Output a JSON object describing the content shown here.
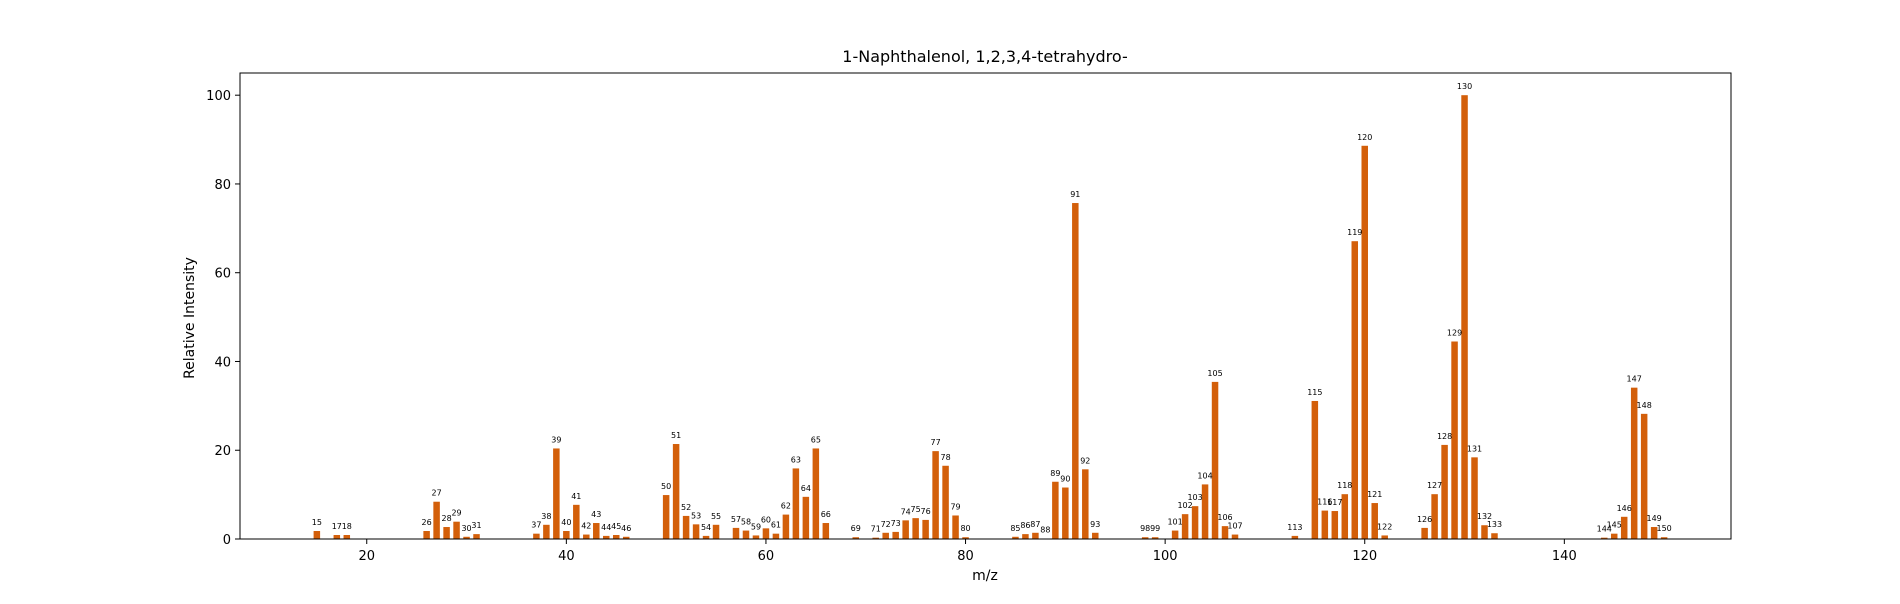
{
  "chart_data": {
    "type": "bar",
    "title": "1-Naphthalenol, 1,2,3,4-tetrahydro-",
    "xlabel": "m/z",
    "ylabel": "Relative Intensity",
    "xlim": [
      7.3,
      156.7
    ],
    "ylim": [
      0,
      105
    ],
    "xticks": [
      20,
      40,
      60,
      80,
      100,
      120,
      140
    ],
    "yticks": [
      0,
      20,
      40,
      60,
      80,
      100
    ],
    "bar_color": "#d35f0a",
    "grid": false,
    "points": [
      {
        "x": 15,
        "y": 1.8
      },
      {
        "x": 17,
        "y": 0.9
      },
      {
        "x": 18,
        "y": 0.9
      },
      {
        "x": 26,
        "y": 1.8
      },
      {
        "x": 27,
        "y": 8.4
      },
      {
        "x": 28,
        "y": 2.7
      },
      {
        "x": 29,
        "y": 3.9
      },
      {
        "x": 30,
        "y": 0.5
      },
      {
        "x": 31,
        "y": 1.1
      },
      {
        "x": 37,
        "y": 1.2
      },
      {
        "x": 38,
        "y": 3.2
      },
      {
        "x": 39,
        "y": 20.4
      },
      {
        "x": 40,
        "y": 1.8
      },
      {
        "x": 41,
        "y": 7.7
      },
      {
        "x": 42,
        "y": 1.0
      },
      {
        "x": 43,
        "y": 3.6
      },
      {
        "x": 44,
        "y": 0.7
      },
      {
        "x": 45,
        "y": 0.9
      },
      {
        "x": 46,
        "y": 0.5
      },
      {
        "x": 50,
        "y": 9.9
      },
      {
        "x": 51,
        "y": 21.4
      },
      {
        "x": 52,
        "y": 5.2
      },
      {
        "x": 53,
        "y": 3.3
      },
      {
        "x": 54,
        "y": 0.7
      },
      {
        "x": 55,
        "y": 3.2
      },
      {
        "x": 57,
        "y": 2.5
      },
      {
        "x": 58,
        "y": 1.9
      },
      {
        "x": 59,
        "y": 0.8
      },
      {
        "x": 60,
        "y": 2.4
      },
      {
        "x": 61,
        "y": 1.2
      },
      {
        "x": 62,
        "y": 5.5
      },
      {
        "x": 63,
        "y": 15.9
      },
      {
        "x": 64,
        "y": 9.5
      },
      {
        "x": 65,
        "y": 20.4
      },
      {
        "x": 66,
        "y": 3.6
      },
      {
        "x": 69,
        "y": 0.4
      },
      {
        "x": 71,
        "y": 0.3
      },
      {
        "x": 72,
        "y": 1.4
      },
      {
        "x": 73,
        "y": 1.6
      },
      {
        "x": 74,
        "y": 4.2
      },
      {
        "x": 75,
        "y": 4.7
      },
      {
        "x": 76,
        "y": 4.3
      },
      {
        "x": 77,
        "y": 19.8
      },
      {
        "x": 78,
        "y": 16.5
      },
      {
        "x": 79,
        "y": 5.3
      },
      {
        "x": 80,
        "y": 0.4
      },
      {
        "x": 85,
        "y": 0.5
      },
      {
        "x": 86,
        "y": 1.1
      },
      {
        "x": 87,
        "y": 1.4
      },
      {
        "x": 88,
        "y": 0.1
      },
      {
        "x": 89,
        "y": 12.9
      },
      {
        "x": 90,
        "y": 11.6
      },
      {
        "x": 91,
        "y": 75.7
      },
      {
        "x": 92,
        "y": 15.7
      },
      {
        "x": 93,
        "y": 1.4
      },
      {
        "x": 98,
        "y": 0.4
      },
      {
        "x": 99,
        "y": 0.4
      },
      {
        "x": 101,
        "y": 1.9
      },
      {
        "x": 102,
        "y": 5.6
      },
      {
        "x": 103,
        "y": 7.4
      },
      {
        "x": 104,
        "y": 12.3
      },
      {
        "x": 105,
        "y": 35.4
      },
      {
        "x": 106,
        "y": 2.9
      },
      {
        "x": 107,
        "y": 1.0
      },
      {
        "x": 113,
        "y": 0.7
      },
      {
        "x": 115,
        "y": 31.1
      },
      {
        "x": 116,
        "y": 6.4
      },
      {
        "x": 117,
        "y": 6.3
      },
      {
        "x": 118,
        "y": 10.1
      },
      {
        "x": 119,
        "y": 67.1
      },
      {
        "x": 120,
        "y": 88.6
      },
      {
        "x": 121,
        "y": 8.1
      },
      {
        "x": 122,
        "y": 0.8
      },
      {
        "x": 126,
        "y": 2.5
      },
      {
        "x": 127,
        "y": 10.1
      },
      {
        "x": 128,
        "y": 21.2
      },
      {
        "x": 129,
        "y": 44.5
      },
      {
        "x": 130,
        "y": 100.0
      },
      {
        "x": 131,
        "y": 18.4
      },
      {
        "x": 132,
        "y": 3.1
      },
      {
        "x": 133,
        "y": 1.3
      },
      {
        "x": 144,
        "y": 0.3
      },
      {
        "x": 145,
        "y": 1.2
      },
      {
        "x": 146,
        "y": 5.0
      },
      {
        "x": 147,
        "y": 34.1
      },
      {
        "x": 148,
        "y": 28.2
      },
      {
        "x": 149,
        "y": 2.7
      },
      {
        "x": 150,
        "y": 0.4
      }
    ]
  }
}
